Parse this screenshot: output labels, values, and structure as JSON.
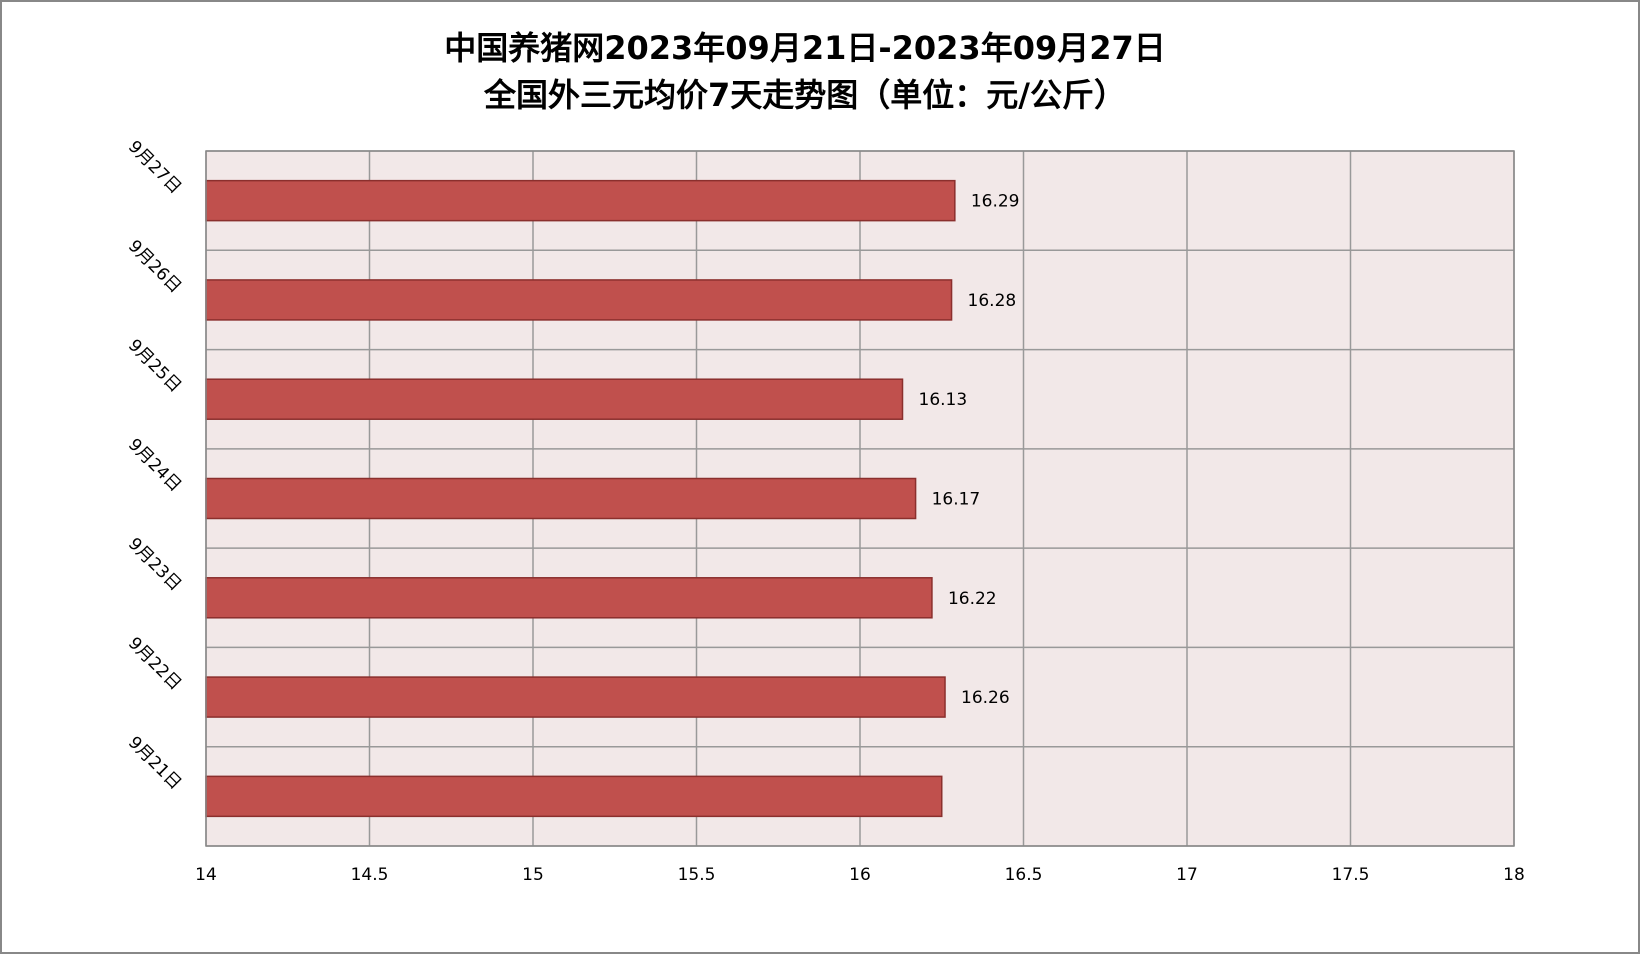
{
  "chart_data": {
    "type": "bar",
    "orientation": "horizontal",
    "title": [
      "中国养猪网2023年09月21日-2023年09月27日",
      "全国外三元均价7天走势图（单位：元/公斤）"
    ],
    "categories": [
      "9月21日",
      "9月22日",
      "9月23日",
      "9月24日",
      "9月25日",
      "9月26日",
      "9月27日"
    ],
    "values": [
      16.25,
      16.26,
      16.22,
      16.17,
      16.13,
      16.28,
      16.29
    ],
    "value_labels": [
      null,
      "16.26",
      "16.22",
      "16.17",
      "16.13",
      "16.28",
      "16.29"
    ],
    "color": "#c0504d",
    "xlim": [
      14,
      18
    ],
    "xticks": [
      14,
      14.5,
      15,
      15.5,
      16,
      16.5,
      17,
      17.5,
      18
    ],
    "grid": true
  }
}
